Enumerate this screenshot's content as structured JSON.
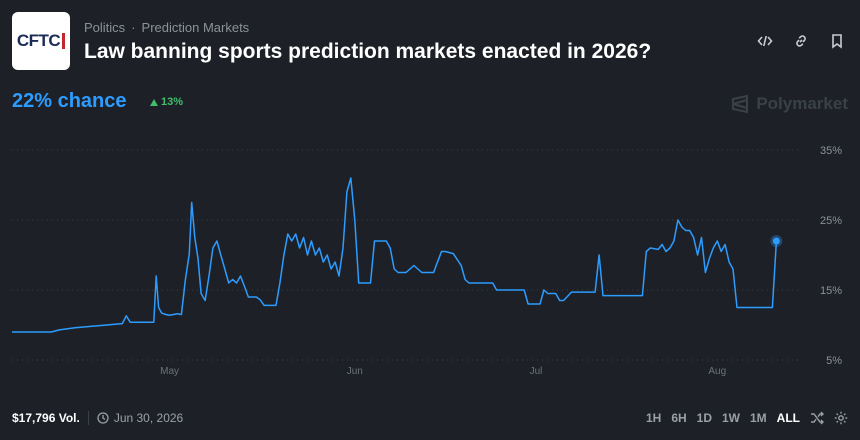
{
  "header": {
    "logo_text": "CFTC",
    "breadcrumb": [
      "Politics",
      "Prediction Markets"
    ],
    "title": "Law banning sports prediction markets enacted in 2026?"
  },
  "summary": {
    "chance": "22% chance",
    "delta": "13%",
    "watermark": "Polymarket"
  },
  "footer": {
    "volume": "$17,796 Vol.",
    "date": "Jun 30, 2026",
    "ranges": [
      "1H",
      "6H",
      "1D",
      "1W",
      "1M",
      "ALL"
    ],
    "active_range": "ALL"
  },
  "chart_data": {
    "type": "line",
    "y_ticks": [
      "35%",
      "25%",
      "15%",
      "5%"
    ],
    "ylim": [
      5,
      35
    ],
    "x_ticks": [
      "May",
      "Jun",
      "Jul",
      "Aug"
    ],
    "series": [
      {
        "color": "#2d9cff",
        "values": [
          [
            0,
            9.0
          ],
          [
            0.05,
            9.0
          ],
          [
            0.06,
            9.3
          ],
          [
            0.08,
            9.6
          ],
          [
            0.1,
            9.8
          ],
          [
            0.12,
            10.0
          ],
          [
            0.14,
            10.2
          ],
          [
            0.145,
            11.3
          ],
          [
            0.15,
            10.4
          ],
          [
            0.18,
            10.4
          ],
          [
            0.183,
            17.0
          ],
          [
            0.186,
            12.5
          ],
          [
            0.19,
            11.7
          ],
          [
            0.195,
            11.5
          ],
          [
            0.2,
            11.4
          ],
          [
            0.21,
            11.6
          ],
          [
            0.215,
            11.5
          ],
          [
            0.22,
            16.5
          ],
          [
            0.225,
            20.2
          ],
          [
            0.228,
            27.5
          ],
          [
            0.232,
            22.5
          ],
          [
            0.236,
            19.5
          ],
          [
            0.24,
            14.5
          ],
          [
            0.245,
            13.5
          ],
          [
            0.25,
            17.0
          ],
          [
            0.255,
            21.0
          ],
          [
            0.26,
            22.0
          ],
          [
            0.265,
            20.0
          ],
          [
            0.27,
            18.0
          ],
          [
            0.275,
            16.0
          ],
          [
            0.28,
            16.5
          ],
          [
            0.285,
            16.0
          ],
          [
            0.29,
            17.0
          ],
          [
            0.295,
            15.5
          ],
          [
            0.3,
            14.0
          ],
          [
            0.31,
            14.0
          ],
          [
            0.315,
            13.6
          ],
          [
            0.32,
            12.8
          ],
          [
            0.335,
            12.8
          ],
          [
            0.34,
            16.0
          ],
          [
            0.345,
            20.0
          ],
          [
            0.35,
            23.0
          ],
          [
            0.355,
            22.0
          ],
          [
            0.36,
            23.0
          ],
          [
            0.365,
            21.0
          ],
          [
            0.37,
            22.5
          ],
          [
            0.375,
            20.0
          ],
          [
            0.38,
            22.0
          ],
          [
            0.385,
            20.0
          ],
          [
            0.39,
            21.0
          ],
          [
            0.395,
            19.0
          ],
          [
            0.4,
            20.0
          ],
          [
            0.405,
            18.0
          ],
          [
            0.41,
            19.0
          ],
          [
            0.415,
            17.0
          ],
          [
            0.42,
            21.0
          ],
          [
            0.425,
            29.0
          ],
          [
            0.43,
            31.0
          ],
          [
            0.435,
            25.0
          ],
          [
            0.44,
            16.0
          ],
          [
            0.455,
            16.0
          ],
          [
            0.46,
            22.0
          ],
          [
            0.475,
            22.0
          ],
          [
            0.48,
            21.0
          ],
          [
            0.485,
            18.0
          ],
          [
            0.49,
            17.5
          ],
          [
            0.5,
            17.5
          ],
          [
            0.51,
            18.5
          ],
          [
            0.52,
            17.5
          ],
          [
            0.535,
            17.5
          ],
          [
            0.54,
            19.0
          ],
          [
            0.545,
            20.5
          ],
          [
            0.55,
            20.5
          ],
          [
            0.56,
            20.2
          ],
          [
            0.57,
            18.5
          ],
          [
            0.575,
            16.5
          ],
          [
            0.58,
            16.0
          ],
          [
            0.61,
            16.0
          ],
          [
            0.615,
            15.0
          ],
          [
            0.65,
            15.0
          ],
          [
            0.655,
            13.0
          ],
          [
            0.67,
            13.0
          ],
          [
            0.675,
            15.0
          ],
          [
            0.68,
            14.5
          ],
          [
            0.69,
            14.5
          ],
          [
            0.695,
            13.5
          ],
          [
            0.7,
            13.5
          ],
          [
            0.71,
            14.7
          ],
          [
            0.74,
            14.7
          ],
          [
            0.745,
            20.0
          ],
          [
            0.75,
            14.2
          ],
          [
            0.8,
            14.2
          ],
          [
            0.805,
            20.5
          ],
          [
            0.81,
            21.0
          ],
          [
            0.82,
            20.8
          ],
          [
            0.825,
            21.5
          ],
          [
            0.83,
            20.5
          ],
          [
            0.835,
            21.0
          ],
          [
            0.84,
            22.0
          ],
          [
            0.845,
            25.0
          ],
          [
            0.85,
            24.0
          ],
          [
            0.855,
            23.5
          ],
          [
            0.86,
            23.5
          ],
          [
            0.865,
            22.5
          ],
          [
            0.87,
            20.0
          ],
          [
            0.875,
            22.5
          ],
          [
            0.88,
            17.5
          ],
          [
            0.885,
            19.5
          ],
          [
            0.89,
            21.0
          ],
          [
            0.895,
            22.0
          ],
          [
            0.9,
            20.5
          ],
          [
            0.905,
            21.5
          ],
          [
            0.91,
            19.0
          ],
          [
            0.915,
            18.0
          ],
          [
            0.92,
            12.5
          ],
          [
            0.965,
            12.5
          ],
          [
            0.97,
            22.0
          ]
        ]
      }
    ]
  }
}
